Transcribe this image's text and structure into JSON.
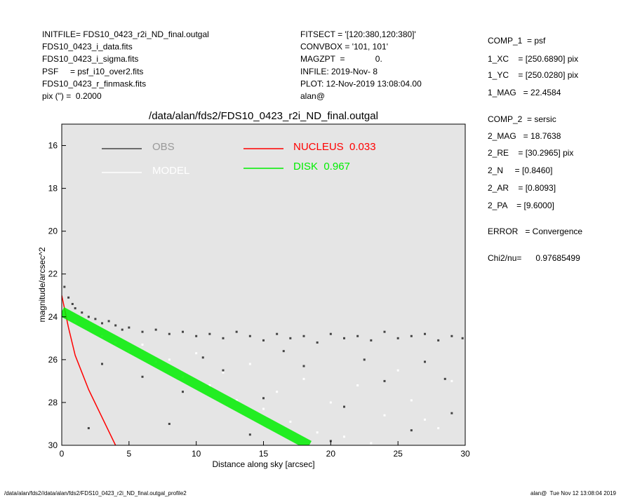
{
  "header": {
    "left": [
      "INITFILE= FDS10_0423_r2i_ND_final.outgal",
      "FDS10_0423_i_data.fits",
      "FDS10_0423_i_sigma.fits",
      "PSF     = psf_i10_over2.fits",
      "FDS10_0423_r_finmask.fits",
      "pix (\") =  0.2000"
    ],
    "middle": [
      "FITSECT = '[120:380,120:380]'",
      "CONVBOX = '101, 101'",
      "MAGZPT  =             0.",
      "INFILE: 2019-Nov- 8",
      "PLOT: 12-Nov-2019 13:08:04.00",
      "alan@"
    ],
    "right": [
      "COMP_1  = psf",
      "1_XC    = [250.6890] pix",
      "1_YC    = [250.0280] pix",
      "1_MAG   = 22.4584",
      "COMP_2  = sersic",
      "2_MAG   = 18.7638",
      "2_RE    = [30.2965] pix",
      "2_N     = [0.8460]",
      "2_AR    = [0.8093]",
      "2_PA    = [9.6000]",
      "ERROR   = Convergence",
      "Chi2/nu=      0.97685499"
    ]
  },
  "footer": {
    "left": "/data/alan/fds2//data/alan/fds2/FDS10_0423_r2i_ND_final.outgal_profile2",
    "right": "alan@  Tue Nov 12 13:08:04 2019"
  },
  "chart_data": {
    "type": "scatter",
    "title": "/data/alan/fds2/FDS10_0423_r2i_ND_final.outgal",
    "xlabel": "Distance along sky [arcsec]",
    "ylabel": "magnitude/arcsec^2",
    "xlim": [
      0,
      30
    ],
    "ylim": [
      30,
      15
    ],
    "xticks": [
      0,
      5,
      10,
      15,
      20,
      25,
      30
    ],
    "yticks": [
      16,
      18,
      20,
      22,
      24,
      26,
      28,
      30
    ],
    "background": "#e5e5e5",
    "series": [
      {
        "name": "OBS",
        "color": "#444444",
        "kind": "points",
        "x": [
          0.2,
          0.5,
          0.8,
          1.0,
          1.5,
          2,
          2.5,
          3,
          3.5,
          4,
          4.5,
          5,
          6,
          7,
          8,
          9,
          10,
          11,
          12,
          13,
          14,
          15,
          16,
          17,
          18,
          19,
          20,
          21,
          22,
          23,
          24,
          25,
          26,
          27,
          28,
          29,
          29.8,
          3,
          6,
          9,
          12,
          15,
          18,
          21,
          24,
          27,
          29,
          2,
          8,
          14,
          20,
          26,
          28.5,
          10.5,
          16.5,
          22.5
        ],
        "values": [
          22.6,
          23.1,
          23.4,
          23.6,
          23.8,
          24.0,
          24.1,
          24.3,
          24.2,
          24.4,
          24.6,
          24.5,
          24.7,
          24.6,
          24.8,
          24.7,
          24.9,
          24.8,
          25.0,
          24.7,
          24.9,
          25.1,
          24.8,
          25.0,
          24.9,
          25.2,
          24.8,
          25.0,
          24.9,
          25.1,
          24.7,
          25.0,
          24.9,
          24.8,
          25.1,
          24.9,
          25.0,
          26.2,
          26.8,
          27.5,
          26.5,
          27.8,
          26.3,
          28.2,
          27.0,
          26.1,
          28.5,
          29.2,
          29.0,
          29.5,
          29.8,
          29.3,
          26.9,
          25.9,
          25.6,
          26.0
        ]
      },
      {
        "name": "MODEL",
        "color": "#ffffff",
        "kind": "points",
        "x": [
          1,
          3,
          5,
          7,
          9,
          11,
          13,
          15,
          17,
          19,
          4,
          8,
          12,
          16,
          20,
          24,
          28,
          22,
          26,
          18,
          14,
          10,
          6,
          25,
          29,
          21,
          27,
          23
        ],
        "values": [
          24.2,
          24.9,
          25.6,
          26.1,
          26.8,
          27.2,
          27.9,
          28.3,
          28.9,
          29.4,
          25.2,
          26.0,
          26.6,
          27.5,
          28.0,
          28.6,
          29.2,
          27.2,
          27.9,
          26.9,
          26.2,
          25.7,
          25.3,
          26.5,
          27.0,
          29.6,
          28.8,
          29.9
        ]
      },
      {
        "name": "NUCLEUS  0.033",
        "color": "#ff0000",
        "kind": "line",
        "x": [
          0,
          0.5,
          1,
          1.5,
          2,
          3,
          4
        ],
        "values": [
          23.0,
          24.5,
          25.8,
          26.6,
          27.4,
          28.7,
          30.0
        ]
      },
      {
        "name": "DISK  0.967",
        "color": "#00ee00",
        "kind": "band",
        "x": [
          0,
          5,
          10,
          15,
          18.4
        ],
        "values": [
          23.75,
          25.45,
          27.15,
          28.85,
          30.0
        ]
      }
    ]
  }
}
